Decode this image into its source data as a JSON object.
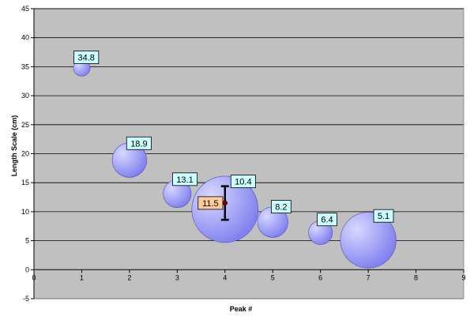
{
  "chart_data": {
    "type": "bubble",
    "title": "",
    "xlabel": "Peak #",
    "ylabel": "Length Scale (cm)",
    "xlim": [
      0,
      9
    ],
    "ylim": [
      -5,
      45
    ],
    "x_ticks": [
      0,
      1,
      2,
      3,
      4,
      5,
      6,
      7,
      8,
      9
    ],
    "y_ticks": [
      -5,
      0,
      5,
      10,
      15,
      20,
      25,
      30,
      35,
      40,
      45
    ],
    "grid": "horizontal",
    "legend": "none",
    "colors": {
      "plot_background": "#c0c0c0",
      "bubble_fill": "#8080f0",
      "bubble_highlight": "#d8d8ff",
      "label_fill": "#ccffff",
      "highlight_label_fill": "#ffcc99",
      "grid": "#000000",
      "error_bar": "#000000",
      "mean_marker": "#800000"
    },
    "points": [
      {
        "x": 1,
        "y": 34.8,
        "label": "34.8",
        "size": 0.25
      },
      {
        "x": 2,
        "y": 18.9,
        "label": "18.9",
        "size": 0.52
      },
      {
        "x": 3,
        "y": 13.1,
        "label": "13.1",
        "size": 0.42
      },
      {
        "x": 4,
        "y": 10.4,
        "label": "10.4",
        "size": 1.0
      },
      {
        "x": 5,
        "y": 8.2,
        "label": "8.2",
        "size": 0.46
      },
      {
        "x": 6,
        "y": 6.4,
        "label": "6.4",
        "size": 0.36
      },
      {
        "x": 7,
        "y": 5.1,
        "label": "5.1",
        "size": 0.84
      }
    ],
    "mean": {
      "x": 4,
      "y": 11.5,
      "label": "11.5",
      "error_low": 8.6,
      "error_high": 14.4
    }
  }
}
